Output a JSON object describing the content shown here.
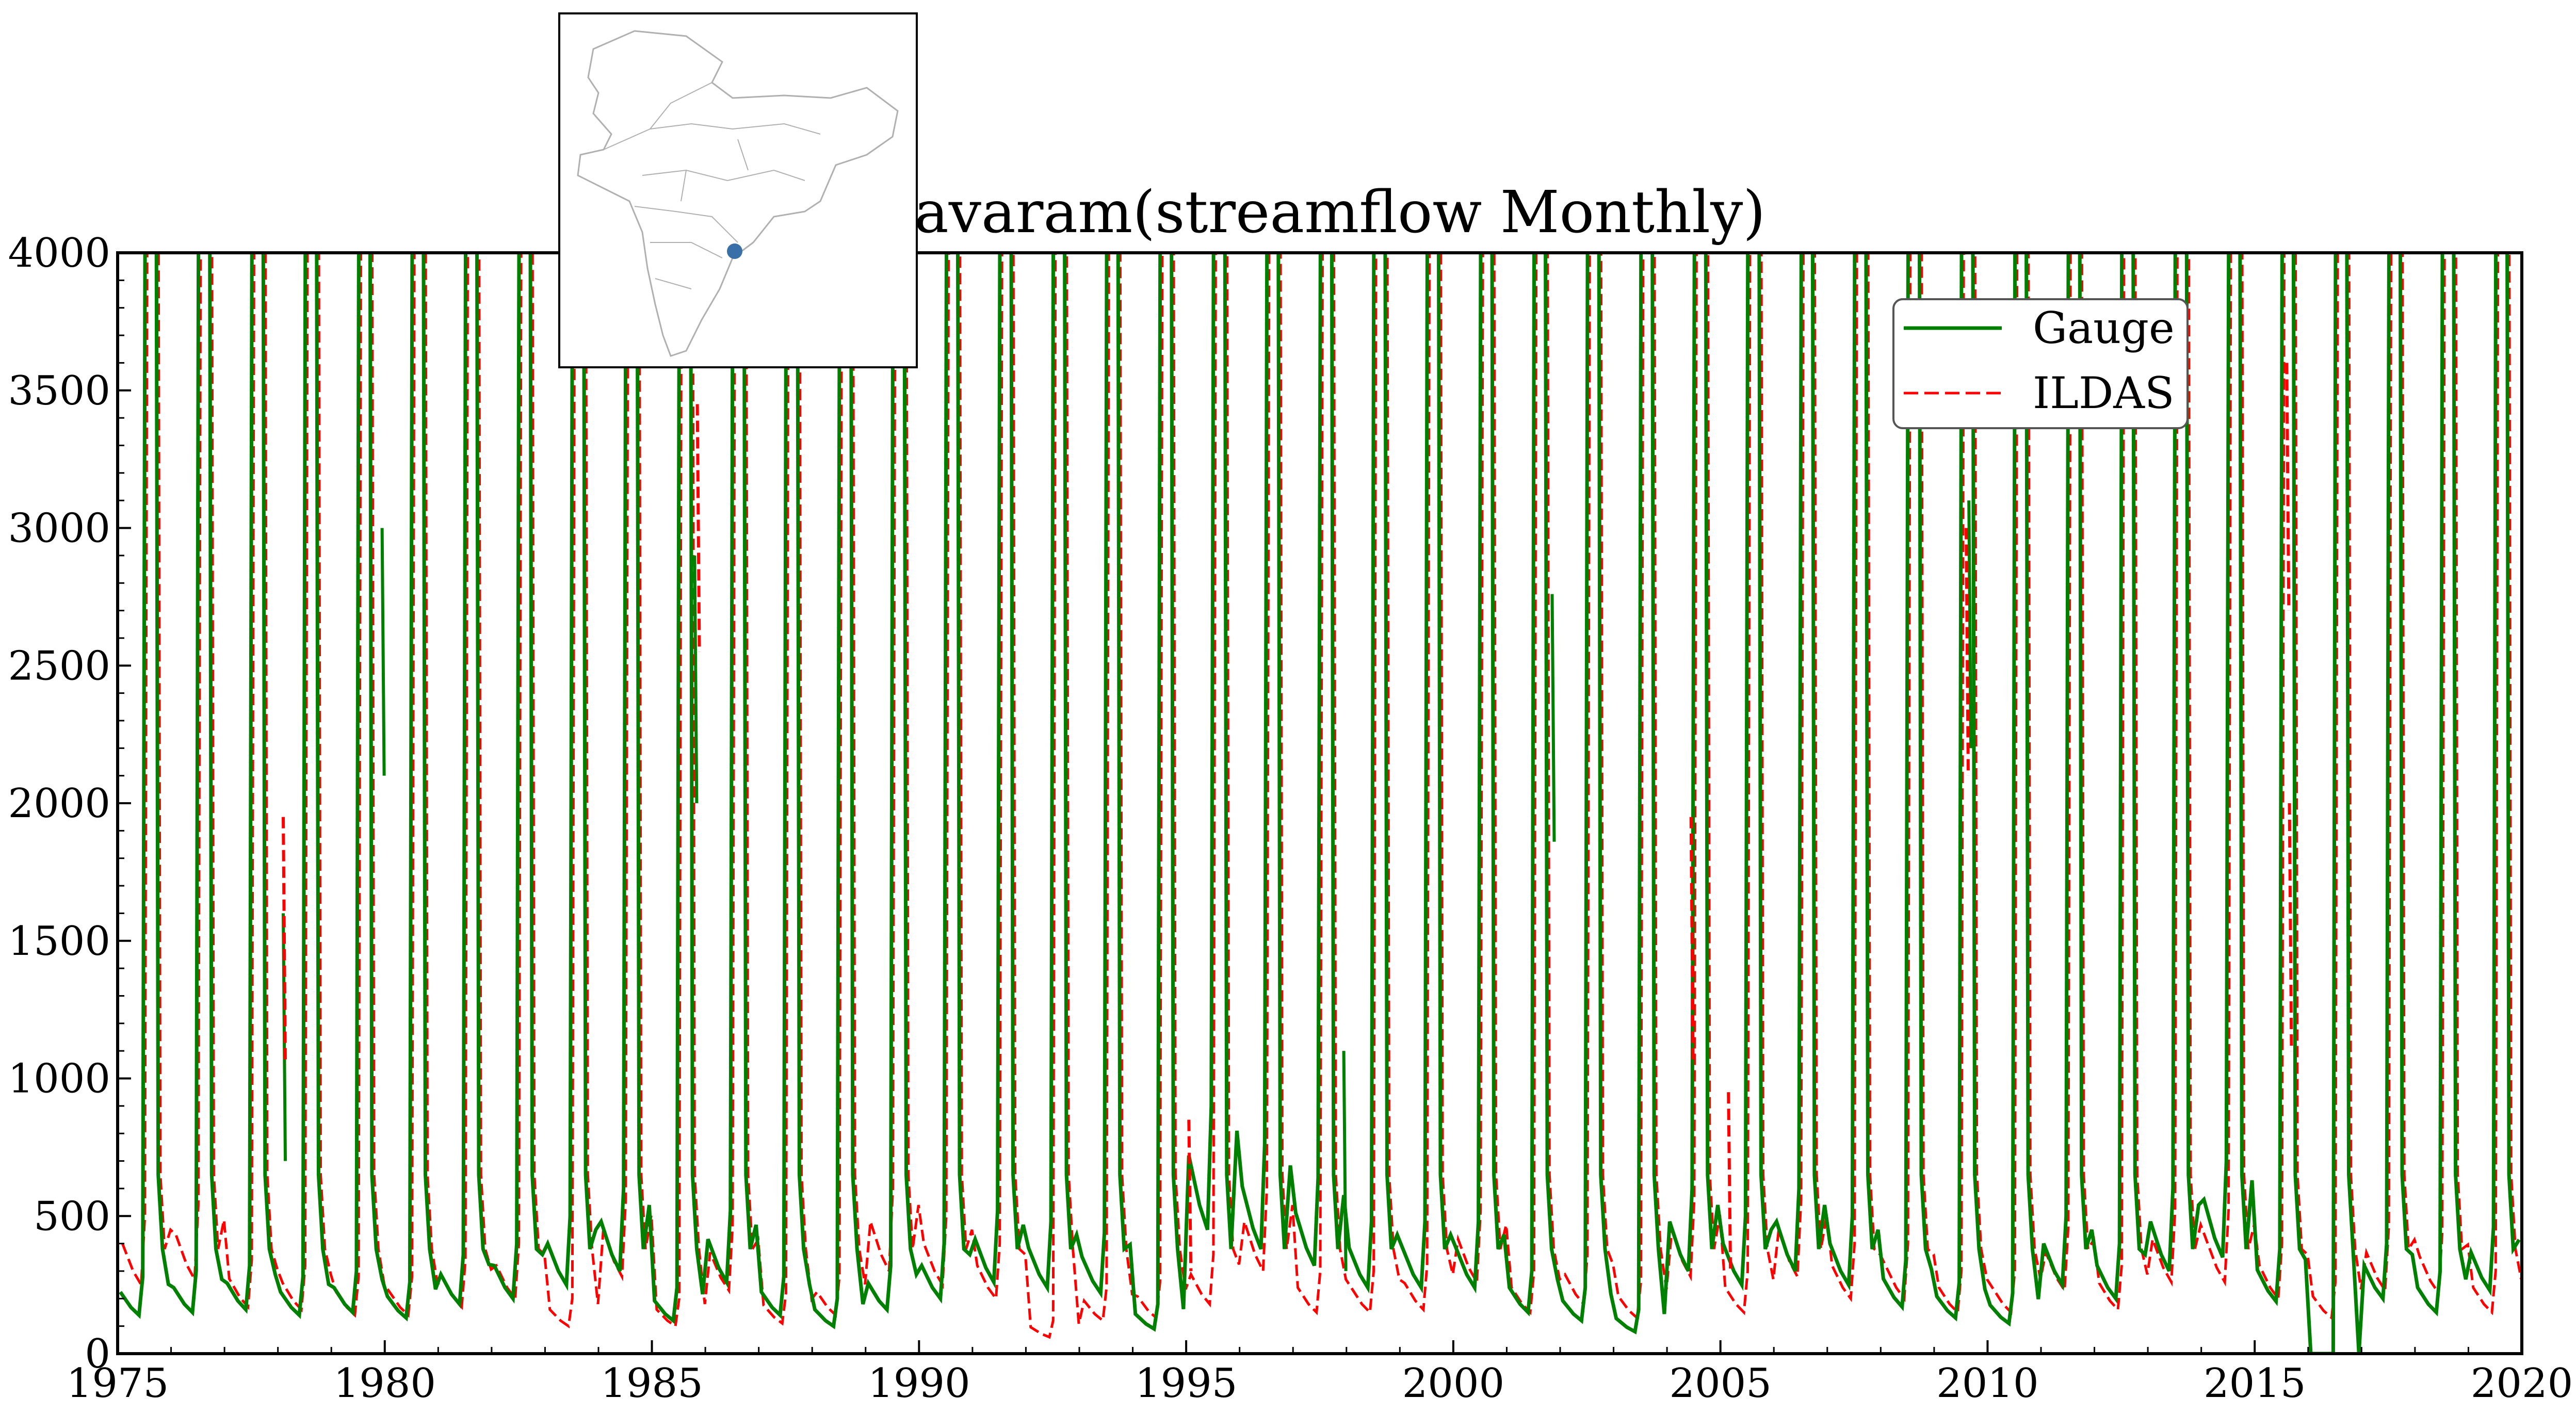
{
  "chart_data": {
    "type": "line",
    "title": "Polavaram(streamflow Monthly)",
    "xlabel": "",
    "ylabel": "",
    "xlim": [
      1975,
      2020
    ],
    "ylim": [
      0,
      4000
    ],
    "xticks": [
      "1975",
      "1980",
      "1985",
      "1990",
      "1995",
      "2000",
      "2005",
      "2010",
      "2015",
      "2020"
    ],
    "yticks": [
      "0",
      "500",
      "1000",
      "1500",
      "2000",
      "2500",
      "3000",
      "3500",
      "4000"
    ],
    "grid": false,
    "legend_position": "top-right",
    "series": [
      {
        "name": "Gauge",
        "color": "#008000",
        "style": "solid",
        "peaks": [
          {
            "year": 1975.0,
            "min": 140
          },
          {
            "year": 1976.0,
            "min": 150
          },
          {
            "year": 1977.0,
            "min": 160
          },
          {
            "year": 1978.0,
            "min": 140
          },
          {
            "year": 1979.0,
            "min": 150
          },
          {
            "year": 1980.0,
            "min": 130
          },
          {
            "year": 1981.0,
            "min": 180
          },
          {
            "year": 1982.0,
            "min": 200
          },
          {
            "year": 1983.0,
            "min": 250
          },
          {
            "year": 1984.0,
            "min": 300
          },
          {
            "year": 1985.0,
            "min": 120
          },
          {
            "year": 1986.0,
            "min": 260
          },
          {
            "year": 1987.0,
            "min": 140
          },
          {
            "year": 1988.0,
            "min": 100
          },
          {
            "year": 1989.0,
            "min": 160
          },
          {
            "year": 1990.0,
            "min": 200
          },
          {
            "year": 1991.0,
            "min": 260
          },
          {
            "year": 1992.0,
            "min": 240
          },
          {
            "year": 1993.0,
            "min": 220
          },
          {
            "year": 1994.0,
            "min": 90
          },
          {
            "year": 1995.0,
            "min": 450
          },
          {
            "year": 1996.0,
            "min": 380
          },
          {
            "year": 1997.0,
            "min": 320
          },
          {
            "year": 1998.0,
            "min": 240
          },
          {
            "year": 1999.0,
            "min": 240
          },
          {
            "year": 2000.0,
            "min": 240
          },
          {
            "year": 2001.0,
            "min": 150
          },
          {
            "year": 2002.0,
            "min": 120
          },
          {
            "year": 2003.0,
            "min": 80
          },
          {
            "year": 2004.0,
            "min": 300
          },
          {
            "year": 2005.0,
            "min": 250
          },
          {
            "year": 2006.0,
            "min": 300
          },
          {
            "year": 2007.0,
            "min": 250
          },
          {
            "year": 2008.0,
            "min": 170
          },
          {
            "year": 2009.0,
            "min": 130
          },
          {
            "year": 2010.0,
            "min": 110
          },
          {
            "year": 2011.0,
            "min": 250
          },
          {
            "year": 2012.0,
            "min": 200
          },
          {
            "year": 2013.0,
            "min": 300
          },
          {
            "year": 2014.0,
            "min": 350
          },
          {
            "year": 2015.0,
            "min": 190
          },
          {
            "year": 2016.0,
            "min": 0
          },
          {
            "year": 2017.0,
            "min": 200
          },
          {
            "year": 2018.0,
            "min": 150
          },
          {
            "year": 2019.0,
            "min": 230
          }
        ]
      },
      {
        "name": "ILDAS",
        "color": "#ff0000",
        "style": "dashed",
        "peaks": [
          {
            "year": 1975.0,
            "min": 250
          },
          {
            "year": 1976.0,
            "min": 270
          },
          {
            "year": 1977.0,
            "min": 170
          },
          {
            "year": 1978.0,
            "min": 160
          },
          {
            "year": 1979.0,
            "min": 140
          },
          {
            "year": 1980.0,
            "min": 140
          },
          {
            "year": 1981.0,
            "min": 170
          },
          {
            "year": 1982.0,
            "min": 200
          },
          {
            "year": 1983.0,
            "min": 100
          },
          {
            "year": 1984.0,
            "min": 280
          },
          {
            "year": 1985.0,
            "min": 100
          },
          {
            "year": 1986.0,
            "min": 230
          },
          {
            "year": 1987.0,
            "min": 110
          },
          {
            "year": 1988.0,
            "min": 140
          },
          {
            "year": 1989.0,
            "min": 300
          },
          {
            "year": 1990.0,
            "min": 250
          },
          {
            "year": 1991.0,
            "min": 200
          },
          {
            "year": 1992.0,
            "min": 60
          },
          {
            "year": 1993.0,
            "min": 120
          },
          {
            "year": 1994.0,
            "min": 130
          },
          {
            "year": 1995.0,
            "min": 180
          },
          {
            "year": 1996.0,
            "min": 300
          },
          {
            "year": 1997.0,
            "min": 150
          },
          {
            "year": 1998.0,
            "min": 150
          },
          {
            "year": 1999.0,
            "min": 160
          },
          {
            "year": 2000.0,
            "min": 260
          },
          {
            "year": 2001.0,
            "min": 150
          },
          {
            "year": 2002.0,
            "min": 180
          },
          {
            "year": 2003.0,
            "min": 130
          },
          {
            "year": 2004.0,
            "min": 280
          },
          {
            "year": 2005.0,
            "min": 150
          },
          {
            "year": 2006.0,
            "min": 280
          },
          {
            "year": 2007.0,
            "min": 200
          },
          {
            "year": 2008.0,
            "min": 200
          },
          {
            "year": 2009.0,
            "min": 150
          },
          {
            "year": 2010.0,
            "min": 150
          },
          {
            "year": 2011.0,
            "min": 230
          },
          {
            "year": 2012.0,
            "min": 160
          },
          {
            "year": 2013.0,
            "min": 260
          },
          {
            "year": 2014.0,
            "min": 260
          },
          {
            "year": 2015.0,
            "min": 200
          },
          {
            "year": 2016.0,
            "min": 130
          },
          {
            "year": 2017.0,
            "min": 230
          },
          {
            "year": 2018.0,
            "min": 220
          },
          {
            "year": 2019.0,
            "min": 150
          }
        ]
      }
    ],
    "spikes": [
      {
        "series": "Gauge",
        "year": 1979.95,
        "value": 3000
      },
      {
        "series": "Gauge",
        "year": 1978.1,
        "value": 1600
      },
      {
        "series": "ILDAS",
        "year": 1978.1,
        "value": 1950
      },
      {
        "series": "ILDAS",
        "year": 1985.85,
        "value": 3450
      },
      {
        "series": "Gauge",
        "year": 1985.8,
        "value": 2900
      },
      {
        "series": "Gauge",
        "year": 1997.95,
        "value": 1100
      },
      {
        "series": "ILDAS",
        "year": 2004.45,
        "value": 1950
      },
      {
        "series": "ILDAS",
        "year": 2005.15,
        "value": 950
      },
      {
        "series": "Gauge",
        "year": 2001.85,
        "value": 2760
      },
      {
        "series": "Gauge",
        "year": 2009.65,
        "value": 3100
      },
      {
        "series": "ILDAS",
        "year": 2009.6,
        "value": 3000
      },
      {
        "series": "ILDAS",
        "year": 1995.05,
        "value": 850
      },
      {
        "series": "ILDAS",
        "year": 2015.6,
        "value": 3600
      },
      {
        "series": "ILDAS",
        "year": 2015.65,
        "value": 2000
      }
    ]
  },
  "inset_map": {
    "marker_color": "#3a70a8",
    "border_color": "#000000",
    "outline_color": "#b0b0b0"
  }
}
